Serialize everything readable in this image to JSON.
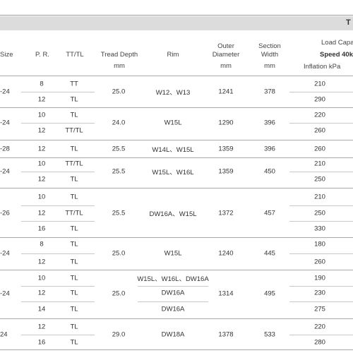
{
  "table": {
    "banner_title": "T",
    "headers": {
      "size": "Size",
      "pr": "P. R.",
      "tttl": "TT/TL",
      "tread_depth": "Tread Depth",
      "tread_depth_unit": "mm",
      "rim": "Rim",
      "outer_diameter_1": "Outer",
      "outer_diameter_2": "Diameter",
      "outer_diameter_unit": "mm",
      "section_width_1": "Section",
      "section_width_2": "Width",
      "section_width_unit": "mm",
      "load_capacity": "Load Capac",
      "speed": "Speed 40k",
      "inflation": "Inflation kPa"
    },
    "groups": [
      {
        "size": "-24",
        "tread_depth": "25.0",
        "rim": "W12、W13",
        "outer_diameter": "1241",
        "section_width": "378",
        "rows": [
          {
            "pr": "8",
            "tttl": "TT",
            "inflation": "210"
          },
          {
            "pr": "12",
            "tttl": "TL",
            "inflation": "290"
          }
        ]
      },
      {
        "size": "-24",
        "tread_depth": "24.0",
        "rim": "W15L",
        "outer_diameter": "1290",
        "section_width": "396",
        "rows": [
          {
            "pr": "10",
            "tttl": "TL",
            "inflation": "220"
          },
          {
            "pr": "12",
            "tttl": "TT/TL",
            "inflation": "260"
          }
        ]
      },
      {
        "size": "-28",
        "tread_depth": "25.5",
        "rim": "W14L、W15L",
        "outer_diameter": "1359",
        "section_width": "396",
        "rows": [
          {
            "pr": "12",
            "tttl": "TL",
            "inflation": "260"
          }
        ]
      },
      {
        "size": "-24",
        "tread_depth": "25.5",
        "rim": "W15L、W16L",
        "outer_diameter": "1359",
        "section_width": "450",
        "rows": [
          {
            "pr": "10",
            "tttl": "TT/TL",
            "inflation": "210"
          },
          {
            "pr": "12",
            "tttl": "TL",
            "inflation": "250"
          }
        ]
      },
      {
        "size": "-26",
        "tread_depth": "25.5",
        "rim": "DW16A、W15L",
        "outer_diameter": "1372",
        "section_width": "457",
        "rows": [
          {
            "pr": "10",
            "tttl": "TL",
            "inflation": "210"
          },
          {
            "pr": "12",
            "tttl": "TT/TL",
            "inflation": "250"
          },
          {
            "pr": "16",
            "tttl": "TL",
            "inflation": "330"
          }
        ]
      },
      {
        "size": "-24",
        "tread_depth": "25.0",
        "rim": "W15L",
        "outer_diameter": "1240",
        "section_width": "445",
        "rows": [
          {
            "pr": "8",
            "tttl": "TL",
            "inflation": "180"
          },
          {
            "pr": "12",
            "tttl": "TL",
            "inflation": "260"
          }
        ]
      },
      {
        "size": "-24",
        "tread_depth": "25.0",
        "outer_diameter": "1314",
        "section_width": "495",
        "rows": [
          {
            "pr": "10",
            "tttl": "TL",
            "rim": "W15L、W16L、DW16A",
            "inflation": "190"
          },
          {
            "pr": "12",
            "tttl": "TL",
            "rim": "DW16A",
            "inflation": "230"
          },
          {
            "pr": "14",
            "tttl": "TL",
            "rim": "DW16A",
            "inflation": "275"
          }
        ]
      },
      {
        "size": "24",
        "tread_depth": "29.0",
        "rim": "DW18A",
        "outer_diameter": "1378",
        "section_width": "533",
        "rows": [
          {
            "pr": "12",
            "tttl": "TL",
            "inflation": "220"
          },
          {
            "pr": "16",
            "tttl": "TL",
            "inflation": "280"
          }
        ]
      }
    ]
  }
}
